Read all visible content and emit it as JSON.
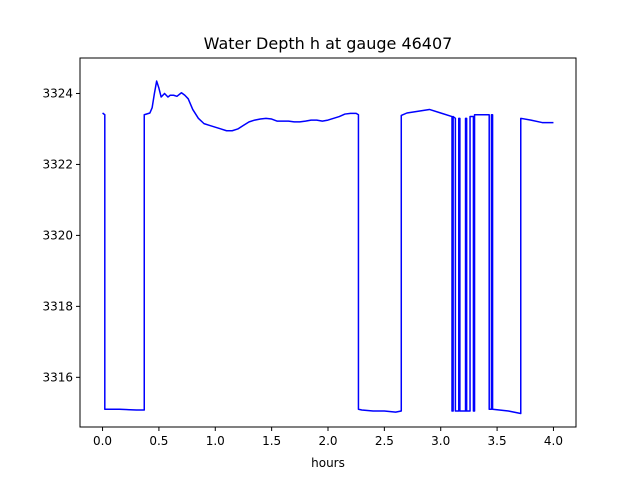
{
  "chart_data": {
    "type": "line",
    "title": "Water Depth h at gauge 46407",
    "xlabel": "hours",
    "ylabel": "",
    "xlim": [
      -0.2,
      4.2
    ],
    "ylim": [
      3314.6,
      3325.0
    ],
    "xticks": [
      0.0,
      0.5,
      1.0,
      1.5,
      2.0,
      2.5,
      3.0,
      3.5,
      4.0
    ],
    "xtick_labels": [
      "0.0",
      "0.5",
      "1.0",
      "1.5",
      "2.0",
      "2.5",
      "3.0",
      "3.5",
      "4.0"
    ],
    "yticks": [
      3316,
      3318,
      3320,
      3322,
      3324
    ],
    "ytick_labels": [
      "3316",
      "3318",
      "3320",
      "3322",
      "3324"
    ],
    "grid": false,
    "series": [
      {
        "color": "#0000ff",
        "x": [
          0.0,
          0.02,
          0.02,
          0.15,
          0.3,
          0.37,
          0.37,
          0.42,
          0.44,
          0.46,
          0.48,
          0.5,
          0.52,
          0.55,
          0.58,
          0.6,
          0.63,
          0.66,
          0.7,
          0.73,
          0.76,
          0.8,
          0.85,
          0.9,
          0.95,
          1.0,
          1.05,
          1.1,
          1.15,
          1.2,
          1.25,
          1.3,
          1.35,
          1.4,
          1.45,
          1.5,
          1.55,
          1.6,
          1.65,
          1.7,
          1.75,
          1.8,
          1.85,
          1.9,
          1.95,
          2.0,
          2.05,
          2.1,
          2.15,
          2.2,
          2.25,
          2.27,
          2.27,
          2.3,
          2.4,
          2.5,
          2.6,
          2.65,
          2.65,
          2.7,
          2.8,
          2.9,
          3.0,
          3.1,
          3.1,
          3.11,
          3.11,
          3.13,
          3.13,
          3.16,
          3.16,
          3.17,
          3.17,
          3.22,
          3.22,
          3.23,
          3.23,
          3.26,
          3.26,
          3.29,
          3.29,
          3.3,
          3.3,
          3.43,
          3.43,
          3.45,
          3.45,
          3.46,
          3.46,
          3.6,
          3.71,
          3.71,
          3.8,
          3.9,
          4.0
        ],
        "y": [
          3323.45,
          3323.4,
          3315.1,
          3315.1,
          3315.08,
          3315.08,
          3323.4,
          3323.45,
          3323.6,
          3324.0,
          3324.35,
          3324.15,
          3323.9,
          3324.0,
          3323.9,
          3323.95,
          3323.95,
          3323.92,
          3324.02,
          3323.95,
          3323.85,
          3323.55,
          3323.3,
          3323.15,
          3323.1,
          3323.05,
          3323.0,
          3322.95,
          3322.95,
          3323.0,
          3323.1,
          3323.2,
          3323.25,
          3323.28,
          3323.3,
          3323.28,
          3323.22,
          3323.22,
          3323.22,
          3323.2,
          3323.2,
          3323.22,
          3323.25,
          3323.25,
          3323.22,
          3323.25,
          3323.3,
          3323.35,
          3323.42,
          3323.44,
          3323.44,
          3323.4,
          3315.1,
          3315.08,
          3315.05,
          3315.05,
          3315.02,
          3315.05,
          3323.38,
          3323.45,
          3323.5,
          3323.55,
          3323.45,
          3323.35,
          3315.05,
          3315.05,
          3323.35,
          3323.3,
          3315.05,
          3315.05,
          3323.3,
          3323.3,
          3315.05,
          3315.05,
          3323.3,
          3323.3,
          3315.05,
          3315.05,
          3323.35,
          3323.35,
          3315.05,
          3315.05,
          3323.4,
          3323.4,
          3315.1,
          3315.1,
          3323.4,
          3323.4,
          3315.1,
          3315.05,
          3314.98,
          3323.3,
          3323.25,
          3323.18,
          3323.18
        ]
      }
    ]
  }
}
